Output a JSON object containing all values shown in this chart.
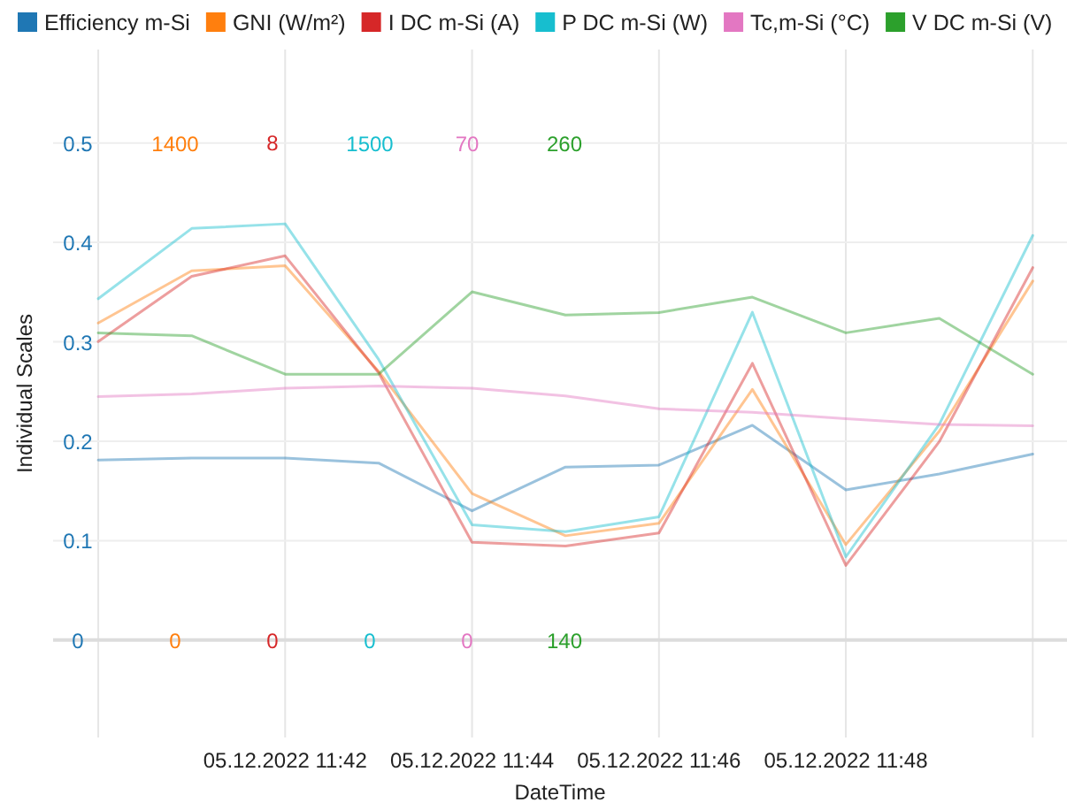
{
  "chart_data": [
    {
      "type": "line",
      "ylabel": "Individual Scales",
      "xlabel": "DateTime",
      "x": [
        "2022-12-05T11:40",
        "2022-12-05T11:41",
        "2022-12-05T11:42",
        "2022-12-05T11:43",
        "2022-12-05T11:44",
        "2022-12-05T11:45",
        "2022-12-05T11:46",
        "2022-12-05T11:47",
        "2022-12-05T11:48",
        "2022-12-05T11:49",
        "2022-12-05T11:50"
      ],
      "xlim": [
        "2022-12-05T11:39:31",
        "2022-12-05T11:50:22"
      ],
      "xticks": [
        {
          "value": "2022-12-05T11:40",
          "label": null
        },
        {
          "value": "2022-12-05T11:42",
          "label": "05.12.2022 11:42"
        },
        {
          "value": "2022-12-05T11:44",
          "label": "05.12.2022 11:44"
        },
        {
          "value": "2022-12-05T11:46",
          "label": "05.12.2022 11:46"
        },
        {
          "value": "2022-12-05T11:48",
          "label": "05.12.2022 11:48"
        },
        {
          "value": "2022-12-05T11:50",
          "label": null
        }
      ],
      "ylim": [
        -0.098,
        0.594
      ],
      "yticks": [
        0,
        0.1,
        0.2,
        0.3,
        0.4,
        0.5
      ],
      "y2lim": [
        -274,
        1663
      ],
      "y2ticks": [
        0,
        1400
      ],
      "y3lim": [
        -1.57,
        9.5
      ],
      "y3ticks": [
        0,
        8
      ],
      "grid": true,
      "legend": "top",
      "series": [
        {
          "name": "Efficiency m-Si",
          "color": "#1f77b4",
          "axis": "y",
          "values": [
            0.181,
            0.183,
            0.183,
            0.178,
            0.13,
            0.174,
            0.176,
            0.216,
            0.151,
            0.167,
            0.187
          ]
        },
        {
          "name": "GNI (W/m²)",
          "color": "#ff7f0e",
          "axis": "y2",
          "values": [
            893,
            1040,
            1054,
            757,
            413,
            294,
            329,
            706,
            269,
            588,
            1011
          ]
        },
        {
          "name": "I DC m-Si (A)",
          "color": "#d62728",
          "axis": "y3",
          "values": [
            4.8,
            5.85,
            6.18,
            4.3,
            1.57,
            1.51,
            1.72,
            4.45,
            1.2,
            3.19,
            5.99
          ]
        }
      ]
    },
    {
      "type": "line",
      "tick_labels": "y",
      "x": [
        "2022-12-05T11:40",
        "2022-12-05T11:41",
        "2022-12-05T11:42",
        "2022-12-05T11:43",
        "2022-12-05T11:44",
        "2022-12-05T11:45",
        "2022-12-05T11:46",
        "2022-12-05T11:47",
        "2022-12-05T11:48",
        "2022-12-05T11:49",
        "2022-12-05T11:50"
      ],
      "xlim": [
        "2022-12-05T11:39:31",
        "2022-12-05T11:50:22"
      ],
      "ylim": [
        -294,
        1782
      ],
      "yticks": [
        0,
        1500
      ],
      "y2lim": [
        -13.7,
        83.2
      ],
      "y2ticks": [
        0,
        70
      ],
      "y3lim": [
        116.5,
        282.6
      ],
      "y3ticks": [
        140,
        260
      ],
      "legend": "top",
      "series": [
        {
          "name": "P DC m-Si (W)",
          "color": "#17becf",
          "axis": "y",
          "values": [
            1030,
            1242,
            1256,
            847,
            348,
            327,
            372,
            989,
            251,
            651,
            1221
          ]
        },
        {
          "name": "Tc,m-Si (°C)",
          "color": "#e377c2",
          "axis": "y2",
          "values": [
            34.3,
            34.7,
            35.5,
            35.8,
            35.5,
            34.4,
            32.6,
            32.1,
            31.2,
            30.4,
            30.2
          ]
        },
        {
          "name": "V DC m-Si (V)",
          "color": "#2ca02c",
          "axis": "y3",
          "values": [
            214.2,
            213.5,
            204.2,
            204.2,
            224.1,
            218.5,
            219.1,
            222.8,
            214.2,
            217.7,
            204.2
          ]
        }
      ]
    }
  ]
}
